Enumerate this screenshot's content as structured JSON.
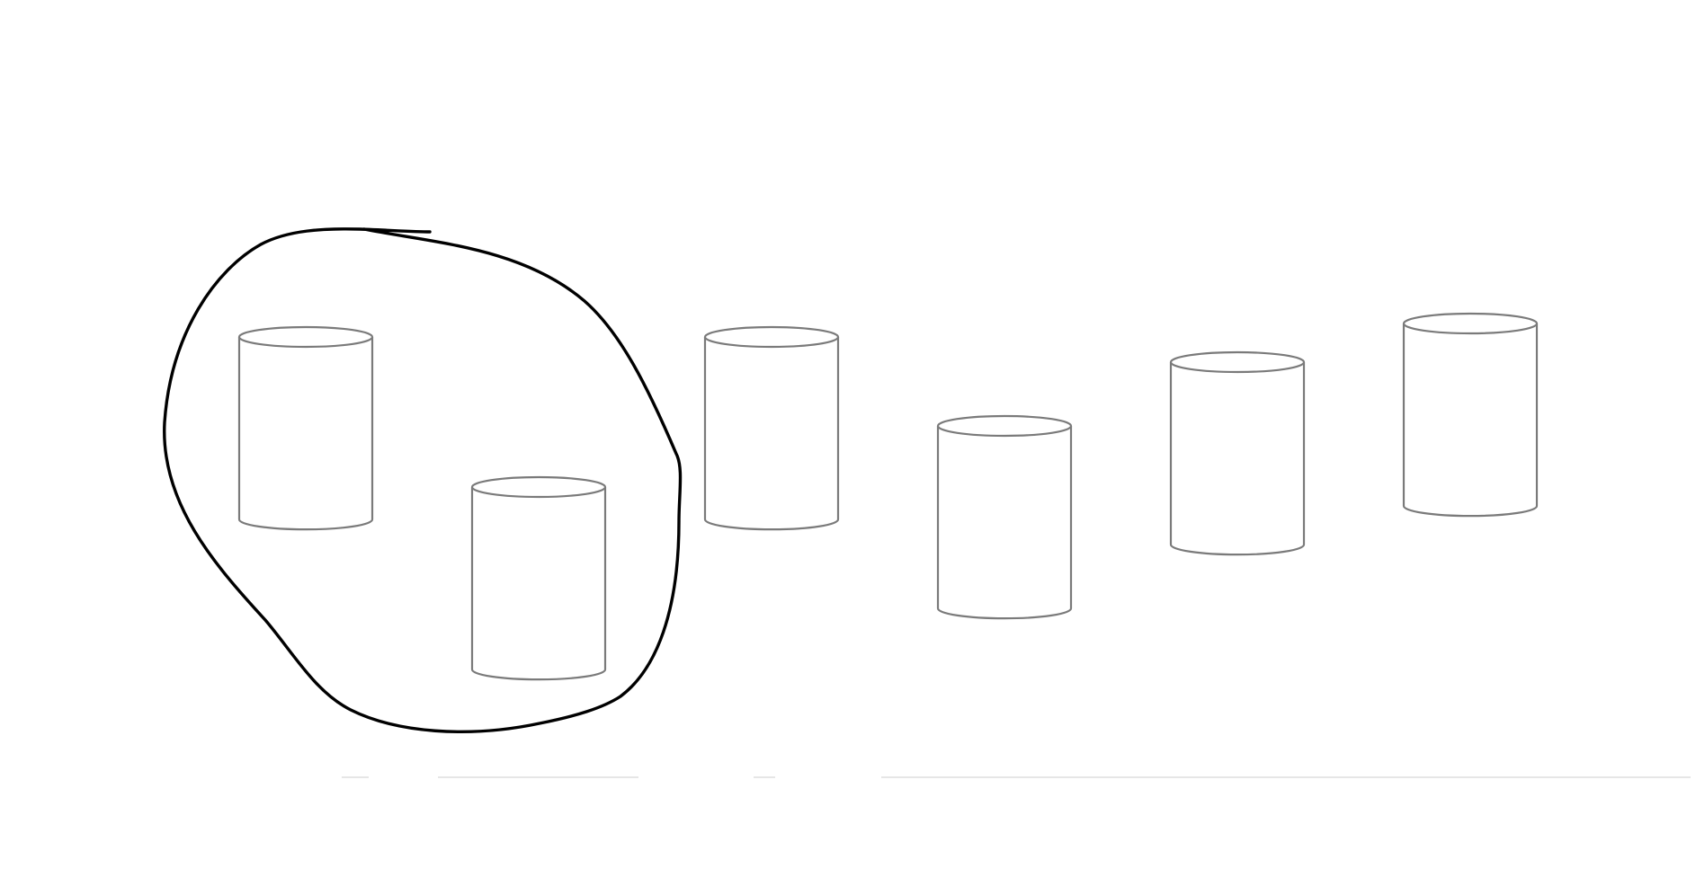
{
  "diagram": {
    "shape_kind": "cylinder",
    "cylinder_count": 6,
    "circled_count": 2,
    "colors": {
      "background": "#ffffff",
      "cylinder_outline": "#7a7a7a",
      "circle_stroke": "#000000",
      "baseline": "#e6e6e6"
    }
  }
}
